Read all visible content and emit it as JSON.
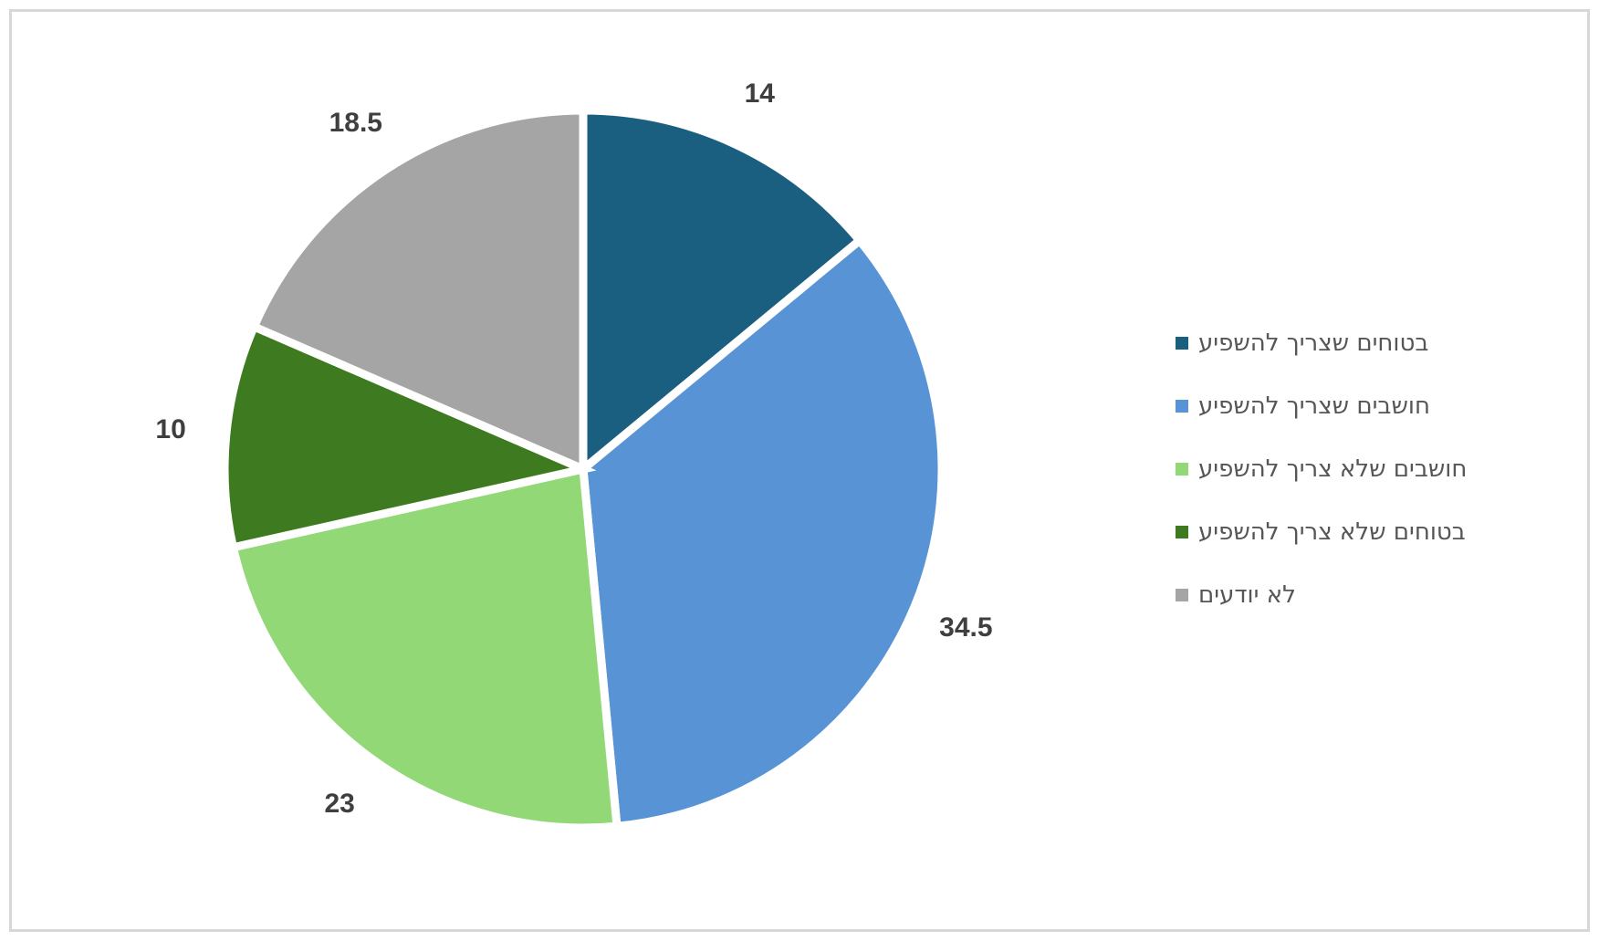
{
  "chart_data": {
    "type": "pie",
    "title": "",
    "categories": [
      "בטוחים שצריך להשפיע",
      "חושבים שצריך להשפיע",
      "חושבים שלא צריך להשפיע",
      "בטוחים שלא צריך להשפיע",
      "לא יודעים"
    ],
    "values": [
      14,
      34.5,
      23,
      10,
      18.5
    ],
    "data_labels": [
      "14",
      "34.5",
      "23",
      "10",
      "18.5"
    ],
    "colors": [
      "#1A5E80",
      "#5894D5",
      "#92D877",
      "#3E7A1F",
      "#A5A5A5"
    ],
    "slice_border_color": "#FFFFFF",
    "data_label_color": "#3F3F3F",
    "legend_text_color": "#565656",
    "legend_position": "right",
    "start_angle_deg": 0,
    "direction": "clockwise",
    "total": 100
  },
  "page": {
    "background": "#FFFFFF",
    "frame_border_color": "#D8D8D8"
  }
}
